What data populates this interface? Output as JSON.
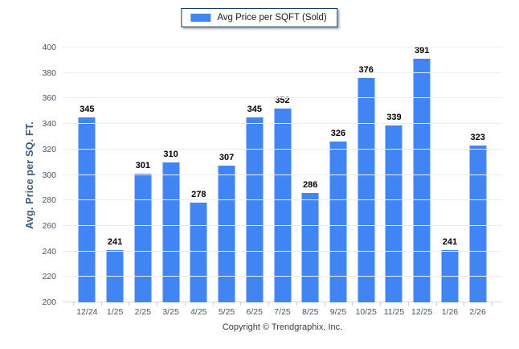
{
  "legend": {
    "label": "Avg Price per SQFT (Sold)"
  },
  "footer": {
    "text": "Copyright © Trendgraphix, Inc."
  },
  "colors": {
    "bar": "#4184f3",
    "legend_border": "#17375e",
    "gridline": "#ececec",
    "axis_line": "#d6d6d6",
    "tick_label": "#44546a",
    "value_label": "#000000",
    "y_title": "#3b5a77"
  },
  "chart_data": {
    "type": "bar",
    "title": "",
    "series_name": "Avg Price per SQFT (Sold)",
    "categories": [
      "12/24",
      "1/25",
      "2/25",
      "3/25",
      "4/25",
      "5/25",
      "6/25",
      "7/25",
      "8/25",
      "9/25",
      "10/25",
      "11/25",
      "12/25",
      "1/26",
      "2/26"
    ],
    "values": [
      345,
      241,
      301,
      310,
      278,
      307,
      345,
      352,
      286,
      326,
      376,
      339,
      391,
      241,
      323
    ],
    "xlabel": "",
    "ylabel": "Avg. Price per SQ. FT.",
    "ylim": [
      200,
      400
    ],
    "yticks": [
      200,
      220,
      240,
      260,
      280,
      300,
      320,
      340,
      360,
      380,
      400
    ],
    "grid": "horizontal",
    "legend_position": "top-center"
  }
}
